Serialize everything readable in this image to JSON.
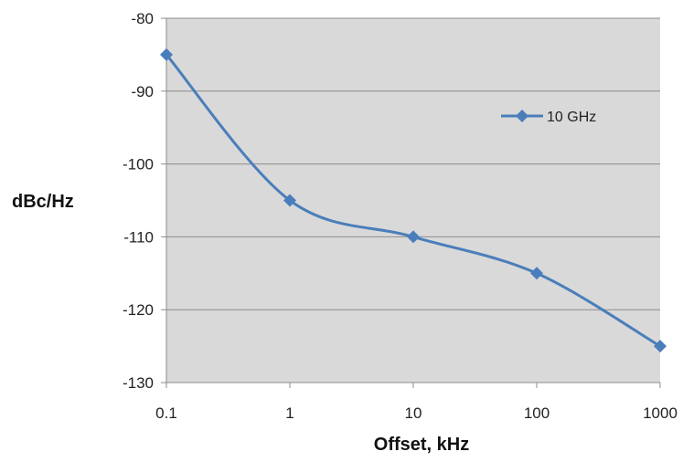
{
  "chart_data": {
    "type": "line",
    "xscale": "log",
    "xlabel": "Offset, kHz",
    "ylabel": "dBc/Hz",
    "x_ticks": [
      "0.1",
      "1",
      "10",
      "100",
      "1000"
    ],
    "y_ticks": [
      "-80",
      "-90",
      "-100",
      "-110",
      "-120",
      "-130"
    ],
    "xlim": [
      0.1,
      1000
    ],
    "ylim": [
      -130,
      -80
    ],
    "grid": "horizontal",
    "legend": "top-right",
    "series": [
      {
        "name": "10 GHz",
        "color": "#4a7ebb",
        "marker": "diamond",
        "x": [
          0.1,
          1,
          10,
          100,
          1000
        ],
        "y": [
          -85,
          -105,
          -110,
          -115,
          -125
        ]
      }
    ],
    "colors": {
      "plot_background": "#d9d9d9",
      "gridline": "#8c8c8c"
    }
  }
}
